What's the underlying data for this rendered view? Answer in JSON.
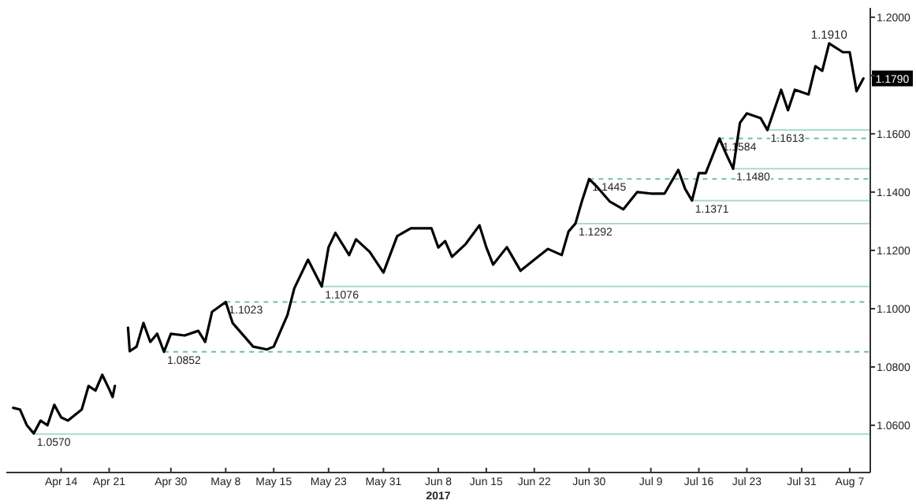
{
  "chart_data": {
    "type": "line",
    "xlabel": "2017",
    "x": [
      "2017-04-07",
      "2017-04-08",
      "2017-04-09",
      "2017-04-10",
      "2017-04-11",
      "2017-04-12",
      "2017-04-13",
      "2017-04-14",
      "2017-04-15",
      "2017-04-17",
      "2017-04-18",
      "2017-04-19",
      "2017-04-20",
      "2017-04-21",
      "2017-04-21T12:00",
      "2017-04-21T20:00",
      "2017-04-22T12:00",
      "2017-04-23T18:00",
      "2017-04-24",
      "2017-04-25",
      "2017-04-26",
      "2017-04-27",
      "2017-04-28",
      "2017-04-29",
      "2017-04-30",
      "2017-05-02",
      "2017-05-04",
      "2017-05-05",
      "2017-05-06",
      "2017-05-08",
      "2017-05-09",
      "2017-05-11",
      "2017-05-12",
      "2017-05-14",
      "2017-05-15",
      "2017-05-16",
      "2017-05-17",
      "2017-05-18",
      "2017-05-20",
      "2017-05-22",
      "2017-05-23",
      "2017-05-24",
      "2017-05-26",
      "2017-05-27",
      "2017-05-29",
      "2017-05-31",
      "2017-06-02",
      "2017-06-04",
      "2017-06-07",
      "2017-06-08",
      "2017-06-09",
      "2017-06-10",
      "2017-06-12",
      "2017-06-14",
      "2017-06-15",
      "2017-06-16",
      "2017-06-18",
      "2017-06-20",
      "2017-06-22",
      "2017-06-24",
      "2017-06-26",
      "2017-06-27",
      "2017-06-28",
      "2017-06-29",
      "2017-06-30",
      "2017-07-01",
      "2017-07-03",
      "2017-07-05",
      "2017-07-07",
      "2017-07-09",
      "2017-07-11",
      "2017-07-13",
      "2017-07-14",
      "2017-07-15",
      "2017-07-16",
      "2017-07-17",
      "2017-07-19",
      "2017-07-20",
      "2017-07-21",
      "2017-07-22",
      "2017-07-23",
      "2017-07-25",
      "2017-07-26",
      "2017-07-28",
      "2017-07-29",
      "2017-07-30",
      "2017-08-01",
      "2017-08-02",
      "2017-08-03",
      "2017-08-04",
      "2017-08-06",
      "2017-08-07",
      "2017-08-08",
      "2017-08-09"
    ],
    "series": [
      {
        "color": "#000000",
        "values": [
          1.066,
          1.0654,
          1.06,
          1.0572,
          1.0616,
          1.06,
          1.067,
          1.0627,
          1.0616,
          1.0654,
          1.0735,
          1.0719,
          1.0773,
          1.0724,
          1.0697,
          1.0735,
          null,
          1.0935,
          1.0854,
          1.087,
          1.0951,
          1.0886,
          1.0914,
          1.0852,
          1.0914,
          1.0908,
          1.0924,
          1.0886,
          1.0989,
          1.1023,
          1.0951,
          1.0897,
          1.087,
          1.086,
          1.087,
          1.0924,
          1.0978,
          1.107,
          1.1168,
          1.1076,
          1.1211,
          1.126,
          1.1184,
          1.1238,
          1.1195,
          1.1124,
          1.1249,
          1.1276,
          1.1276,
          1.121,
          1.1232,
          1.1178,
          1.1222,
          1.1286,
          1.1211,
          1.1151,
          1.1211,
          1.113,
          1.1168,
          1.1205,
          1.1184,
          1.1265,
          1.1292,
          1.1373,
          1.1445,
          1.1422,
          1.1368,
          1.1341,
          1.14,
          1.1395,
          1.1395,
          1.1476,
          1.1411,
          1.1371,
          1.1465,
          1.1465,
          1.1584,
          1.153,
          1.148,
          1.1638,
          1.167,
          1.1654,
          1.1613,
          1.1751,
          1.1681,
          1.1751,
          1.1735,
          1.1832,
          1.1816,
          1.191,
          1.188,
          1.188,
          1.1746,
          1.179
        ]
      }
    ],
    "xlim": [
      "2017-04-06",
      "2017-08-10"
    ],
    "xticks": [
      {
        "value": "2017-04-14",
        "label": "Apr 14"
      },
      {
        "value": "2017-04-21",
        "label": "Apr 21"
      },
      {
        "value": "2017-04-30",
        "label": "Apr 30"
      },
      {
        "value": "2017-05-08",
        "label": "May 8"
      },
      {
        "value": "2017-05-15",
        "label": "May 15"
      },
      {
        "value": "2017-05-23",
        "label": "May 23"
      },
      {
        "value": "2017-05-31",
        "label": "May 31"
      },
      {
        "value": "2017-06-08",
        "label": "Jun 8"
      },
      {
        "value": "2017-06-15",
        "label": "Jun 15"
      },
      {
        "value": "2017-06-22",
        "label": "Jun 22"
      },
      {
        "value": "2017-06-30",
        "label": "Jun 30"
      },
      {
        "value": "2017-07-09",
        "label": "Jul 9"
      },
      {
        "value": "2017-07-16",
        "label": "Jul 16"
      },
      {
        "value": "2017-07-23",
        "label": "Jul 23"
      },
      {
        "value": "2017-07-31",
        "label": "Jul 31"
      },
      {
        "value": "2017-08-07",
        "label": "Aug 7"
      }
    ],
    "ylim": [
      1.0438,
      1.2032
    ],
    "yticks": [
      {
        "value": 1.06,
        "label": "1.0600"
      },
      {
        "value": 1.08,
        "label": "1.0800"
      },
      {
        "value": 1.1,
        "label": "1.1000"
      },
      {
        "value": 1.12,
        "label": "1.1200"
      },
      {
        "value": 1.14,
        "label": "1.1400"
      },
      {
        "value": 1.16,
        "label": "1.1600"
      },
      {
        "value": 1.18,
        "label": null
      },
      {
        "value": 1.2,
        "label": "1.2000"
      }
    ],
    "ref_lines": [
      {
        "axis": "y",
        "value": 1.057,
        "label": "1.0570",
        "color": "#a8dccf",
        "line_style": "solid"
      },
      {
        "axis": "y",
        "value": 1.0852,
        "label": "1.0852",
        "color": "#6cbfae",
        "line_style": "dashed"
      },
      {
        "axis": "y",
        "value": 1.1023,
        "label": "1.1023",
        "color": "#6cbfae",
        "line_style": "dashed"
      },
      {
        "axis": "y",
        "value": 1.1076,
        "label": "1.1076",
        "color": "#a8dccf",
        "line_style": "solid"
      },
      {
        "axis": "y",
        "value": 1.1292,
        "label": "1.1292",
        "color": "#a8dccf",
        "line_style": "solid"
      },
      {
        "axis": "y",
        "value": 1.1371,
        "label": "1.1371",
        "color": "#a8dccf",
        "line_style": "solid"
      },
      {
        "axis": "y",
        "value": 1.1445,
        "label": "1.1445",
        "color": "#6cbfae",
        "line_style": "dashed"
      },
      {
        "axis": "y",
        "value": 1.148,
        "label": "1.1480",
        "color": "#a8dccf",
        "line_style": "solid"
      },
      {
        "axis": "y",
        "value": 1.1584,
        "label": "1.1584",
        "color": "#6cbfae",
        "line_style": "dashed"
      },
      {
        "axis": "y",
        "value": 1.1613,
        "label": "1.1613",
        "color": "#a8dccf",
        "line_style": "solid"
      }
    ],
    "annotations": [
      {
        "text": "1.1910",
        "x": "2017-08-04",
        "y": 1.191
      },
      {
        "text": "1.1790",
        "x": "2017-08-09",
        "y": 1.179
      }
    ],
    "grid": false,
    "legend": false,
    "marker": "none",
    "line_style": "solid"
  }
}
